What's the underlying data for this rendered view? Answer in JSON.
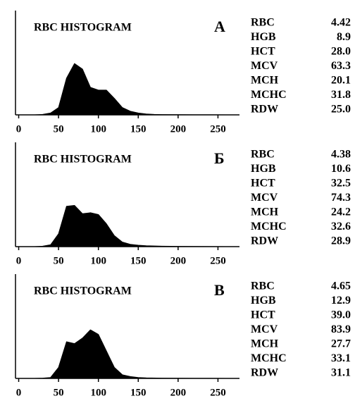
{
  "chart_data": [
    {
      "type": "area",
      "title": "RBC HISTOGRAM",
      "label": "А",
      "color": "#000000",
      "x": [
        20,
        30,
        40,
        50,
        60,
        70,
        80,
        90,
        100,
        110,
        120,
        130,
        140,
        150,
        160,
        170,
        180,
        200,
        220,
        240,
        260,
        270
      ],
      "values": [
        0,
        0.5,
        2,
        8,
        40,
        56,
        50,
        30,
        27,
        27,
        18,
        8,
        4,
        2,
        1,
        0.5,
        0.3,
        0.2,
        0.1,
        0.1,
        0,
        0
      ],
      "xlim": [
        -4,
        277
      ],
      "ylim": [
        0,
        100
      ],
      "xticks": [
        0,
        50,
        100,
        150,
        200,
        250
      ],
      "stats": [
        {
          "name": "RBC",
          "value": "4.42"
        },
        {
          "name": "HGB",
          "value": "8.9"
        },
        {
          "name": "HCT",
          "value": "28.0"
        },
        {
          "name": "MCV",
          "value": "63.3"
        },
        {
          "name": "MCH",
          "value": "20.1"
        },
        {
          "name": "MCHC",
          "value": "31.8"
        },
        {
          "name": "RDW",
          "value": "25.0"
        }
      ]
    },
    {
      "type": "area",
      "title": "RBC HISTOGRAM",
      "label": "Б",
      "color": "#000000",
      "x": [
        20,
        30,
        40,
        50,
        60,
        70,
        80,
        90,
        100,
        110,
        120,
        130,
        140,
        150,
        160,
        180,
        200,
        220,
        240,
        260,
        270
      ],
      "values": [
        0,
        0.5,
        2,
        14,
        44,
        45,
        36,
        37,
        35,
        25,
        12,
        5,
        2.5,
        1.5,
        1,
        0.5,
        0.3,
        0.2,
        0.1,
        0,
        0
      ],
      "xlim": [
        -4,
        277
      ],
      "ylim": [
        0,
        100
      ],
      "xticks": [
        0,
        50,
        100,
        150,
        200,
        250
      ],
      "stats": [
        {
          "name": "RBC",
          "value": "4.38"
        },
        {
          "name": "HGB",
          "value": "10.6"
        },
        {
          "name": "HCT",
          "value": "32.5"
        },
        {
          "name": "MCV",
          "value": "74.3"
        },
        {
          "name": "MCH",
          "value": "24.2"
        },
        {
          "name": "MCHC",
          "value": "32.6"
        },
        {
          "name": "RDW",
          "value": "28.9"
        }
      ]
    },
    {
      "type": "area",
      "title": "RBC HISTOGRAM",
      "label": "В",
      "color": "#000000",
      "x": [
        20,
        30,
        40,
        50,
        60,
        70,
        80,
        90,
        100,
        110,
        120,
        130,
        140,
        150,
        160,
        180,
        200,
        220,
        240,
        260,
        270
      ],
      "values": [
        0,
        0.3,
        1,
        12,
        40,
        38,
        44,
        53,
        48,
        30,
        12,
        4,
        2,
        1,
        0.6,
        0.3,
        0.2,
        0.1,
        0.1,
        0,
        0
      ],
      "xlim": [
        -4,
        277
      ],
      "ylim": [
        0,
        100
      ],
      "xticks": [
        0,
        50,
        100,
        150,
        200,
        250
      ],
      "stats": [
        {
          "name": "RBC",
          "value": "4.65"
        },
        {
          "name": "HGB",
          "value": "12.9"
        },
        {
          "name": "HCT",
          "value": "39.0"
        },
        {
          "name": "MCV",
          "value": "83.9"
        },
        {
          "name": "MCH",
          "value": "27.7"
        },
        {
          "name": "MCHC",
          "value": "33.1"
        },
        {
          "name": "RDW",
          "value": "31.1"
        }
      ]
    }
  ]
}
